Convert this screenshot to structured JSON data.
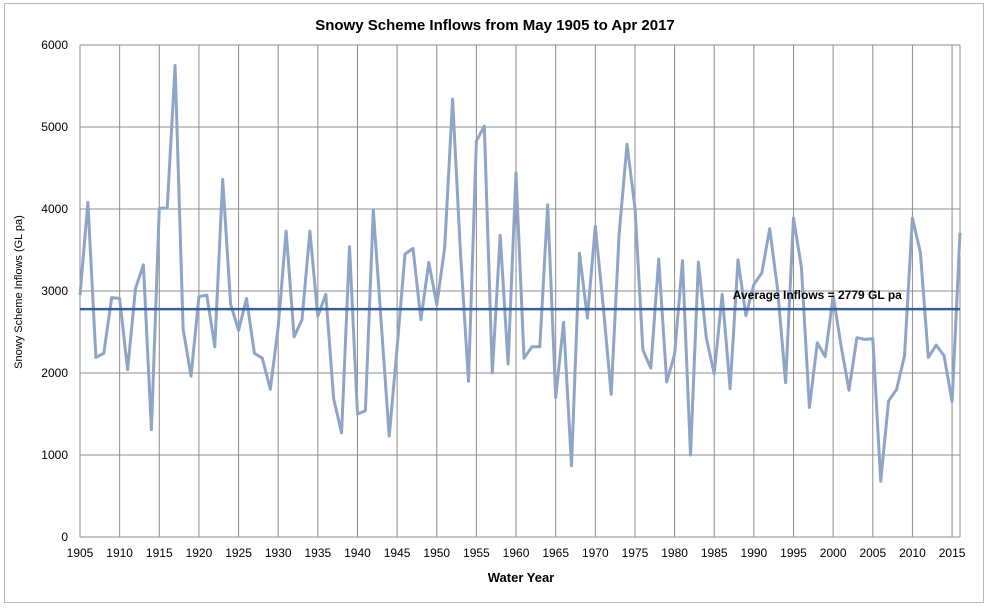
{
  "chart_data": {
    "type": "line",
    "title": "Snowy Scheme Inflows from May 1905 to Apr 2017",
    "xlabel": "Water Year",
    "ylabel": "Snowy Scheme Inflows (GL pa)",
    "xlim": [
      1905,
      2016
    ],
    "ylim": [
      0,
      6000
    ],
    "x_ticks": [
      "1905",
      "1910",
      "1915",
      "1920",
      "1925",
      "1930",
      "1935",
      "1940",
      "1945",
      "1950",
      "1955",
      "1960",
      "1965",
      "1970",
      "1975",
      "1980",
      "1985",
      "1990",
      "1995",
      "2000",
      "2005",
      "2010",
      "2015"
    ],
    "y_ticks": [
      "0",
      "1000",
      "2000",
      "3000",
      "4000",
      "5000",
      "6000"
    ],
    "grid": true,
    "series": [
      {
        "color": "#8ea5c8",
        "x": [
          1905,
          1906,
          1907,
          1908,
          1909,
          1910,
          1911,
          1912,
          1913,
          1914,
          1915,
          1916,
          1917,
          1918,
          1919,
          1920,
          1921,
          1922,
          1923,
          1924,
          1925,
          1926,
          1927,
          1928,
          1929,
          1930,
          1931,
          1932,
          1933,
          1934,
          1935,
          1936,
          1937,
          1938,
          1939,
          1940,
          1941,
          1942,
          1943,
          1944,
          1945,
          1946,
          1947,
          1948,
          1949,
          1950,
          1951,
          1952,
          1953,
          1954,
          1955,
          1956,
          1957,
          1958,
          1959,
          1960,
          1961,
          1962,
          1963,
          1964,
          1965,
          1966,
          1967,
          1968,
          1969,
          1970,
          1971,
          1972,
          1973,
          1974,
          1975,
          1976,
          1977,
          1978,
          1979,
          1980,
          1981,
          1982,
          1983,
          1984,
          1985,
          1986,
          1987,
          1988,
          1989,
          1990,
          1991,
          1992,
          1993,
          1994,
          1995,
          1996,
          1997,
          1998,
          1999,
          2000,
          2001,
          2002,
          2003,
          2004,
          2005,
          2006,
          2007,
          2008,
          2009,
          2010,
          2011,
          2012,
          2013,
          2014,
          2015,
          2016
        ],
        "values": [
          2950,
          4080,
          2190,
          2240,
          2920,
          2910,
          2040,
          3030,
          3320,
          1310,
          4010,
          4010,
          5750,
          2540,
          1960,
          2930,
          2950,
          2320,
          4360,
          2840,
          2520,
          2910,
          2240,
          2180,
          1800,
          2560,
          3730,
          2440,
          2650,
          3730,
          2690,
          2960,
          1680,
          1270,
          3540,
          1500,
          1540,
          3990,
          2600,
          1230,
          2310,
          3450,
          3520,
          2650,
          3350,
          2830,
          3530,
          5340,
          3460,
          1900,
          4830,
          5010,
          2000,
          3680,
          2110,
          4440,
          2180,
          2320,
          2320,
          4050,
          1700,
          2620,
          870,
          3460,
          2670,
          3790,
          2820,
          1740,
          3690,
          4790,
          4010,
          2280,
          2060,
          3390,
          1890,
          2230,
          3370,
          1000,
          3350,
          2430,
          1990,
          2960,
          1810,
          3380,
          2700,
          3080,
          3220,
          3760,
          3010,
          1880,
          3890,
          3290,
          1580,
          2370,
          2200,
          2940,
          2330,
          1790,
          2430,
          2410,
          2420,
          680,
          1660,
          1800,
          2210,
          3890,
          3470,
          2190,
          2340,
          2210,
          1650,
          3710
        ]
      }
    ],
    "average_line": {
      "value": 2779,
      "label": "Average Inflows = 2779 GL pa",
      "color": "#3a5f96"
    }
  }
}
